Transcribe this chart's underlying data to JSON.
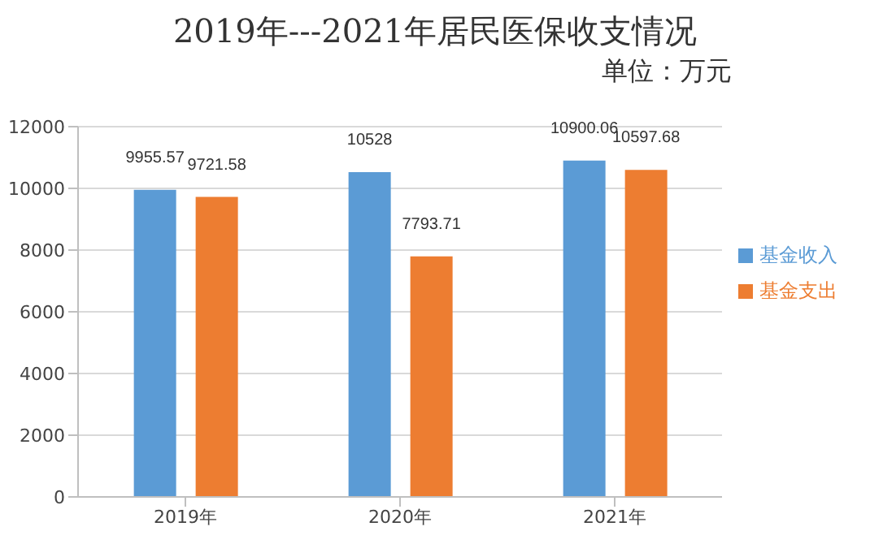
{
  "chart_data": {
    "type": "bar",
    "title": "2019年---2021年居民医保收支情况",
    "subtitle": "单位：万元",
    "categories": [
      "2019年",
      "2020年",
      "2021年"
    ],
    "series": [
      {
        "name": "基金收入",
        "color": "#5b9bd5",
        "values": [
          9955.57,
          10528,
          10900.06
        ]
      },
      {
        "name": "基金支出",
        "color": "#ed7d31",
        "values": [
          9721.58,
          7793.71,
          10597.68
        ]
      }
    ],
    "ylim": [
      0,
      12000
    ],
    "yticks": [
      0,
      2000,
      4000,
      6000,
      8000,
      10000,
      12000
    ],
    "grid": "y",
    "legend": "right",
    "data_labels": true
  }
}
